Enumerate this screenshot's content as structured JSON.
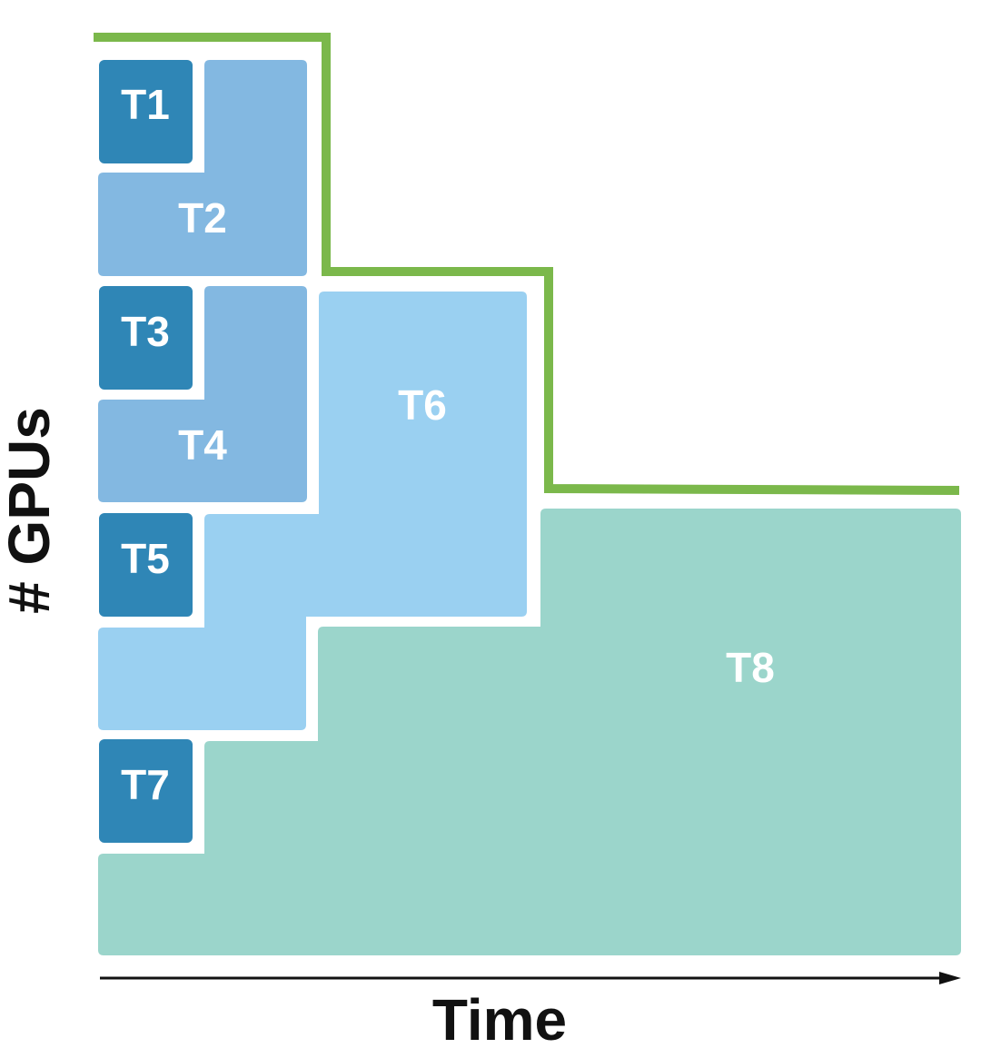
{
  "axes": {
    "x_label": "Time",
    "y_label": "# GPUs"
  },
  "colors": {
    "dark_task": "#2f86b6",
    "mid_task": "#83b8e1",
    "light_task": "#9ad0f1",
    "teal_task": "#9bd5cb",
    "frontier_line": "#7bb84b",
    "axis": "#111111"
  },
  "tasks": [
    {
      "id": "t1",
      "label": "T1",
      "color_key": "dark_task"
    },
    {
      "id": "t2",
      "label": "T2",
      "color_key": "mid_task"
    },
    {
      "id": "t3",
      "label": "T3",
      "color_key": "dark_task"
    },
    {
      "id": "t4",
      "label": "T4",
      "color_key": "mid_task"
    },
    {
      "id": "t5",
      "label": "T5",
      "color_key": "dark_task"
    },
    {
      "id": "t6",
      "label": "T6",
      "color_key": "light_task"
    },
    {
      "id": "t7",
      "label": "T7",
      "color_key": "dark_task"
    },
    {
      "id": "t8",
      "label": "T8",
      "color_key": "teal_task"
    }
  ]
}
